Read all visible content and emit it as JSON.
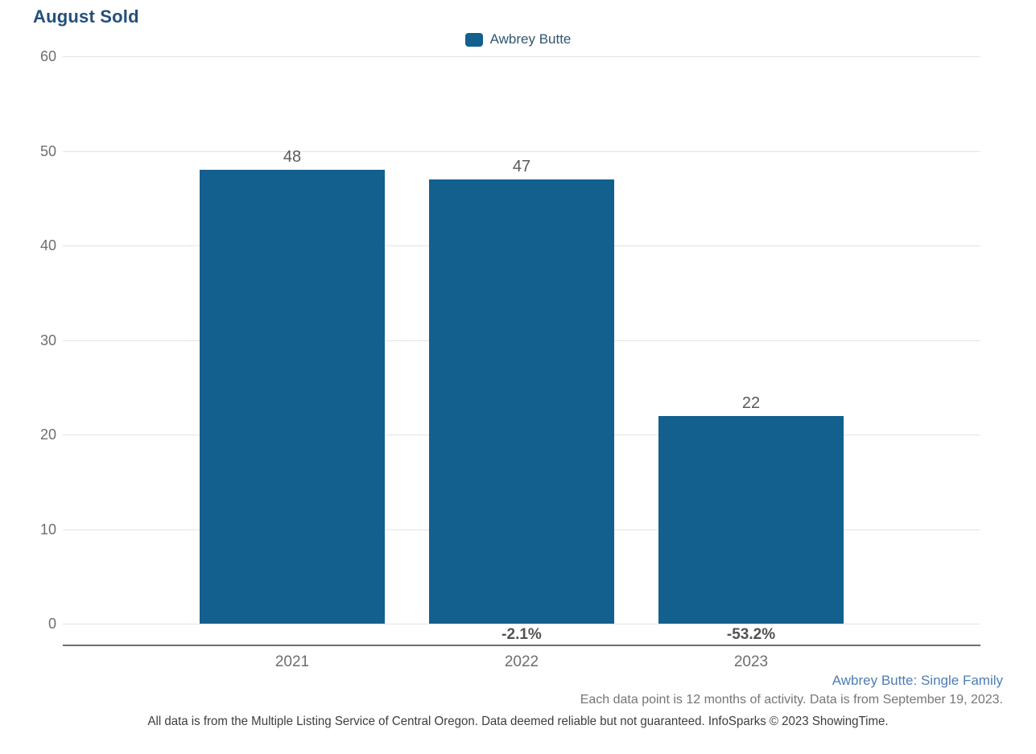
{
  "title": "August Sold",
  "legend": {
    "label": "Awbrey Butte",
    "swatch_color": "#135f8d"
  },
  "chart_data": {
    "type": "bar",
    "title": "August Sold",
    "categories": [
      "2021",
      "2022",
      "2023"
    ],
    "series": [
      {
        "name": "Awbrey Butte",
        "values": [
          48,
          47,
          22
        ]
      }
    ],
    "value_labels": [
      "48",
      "47",
      "22"
    ],
    "pct_change_labels": [
      "",
      "-2.1%",
      "-53.2%"
    ],
    "xlabel": "",
    "ylabel": "",
    "ylim": [
      0,
      60
    ],
    "yticks": [
      0,
      10,
      20,
      30,
      40,
      50,
      60
    ],
    "grid": true,
    "legend_position": "top-center",
    "bar_color": "#135f8d"
  },
  "footer": {
    "series_context": "Awbrey Butte: Single Family",
    "data_note": "Each data point is 12 months of activity. Data is from September 19, 2023.",
    "disclaimer": "All data is from the Multiple Listing Service of Central Oregon. Data deemed reliable but not guaranteed. InfoSparks © 2023 ShowingTime."
  }
}
